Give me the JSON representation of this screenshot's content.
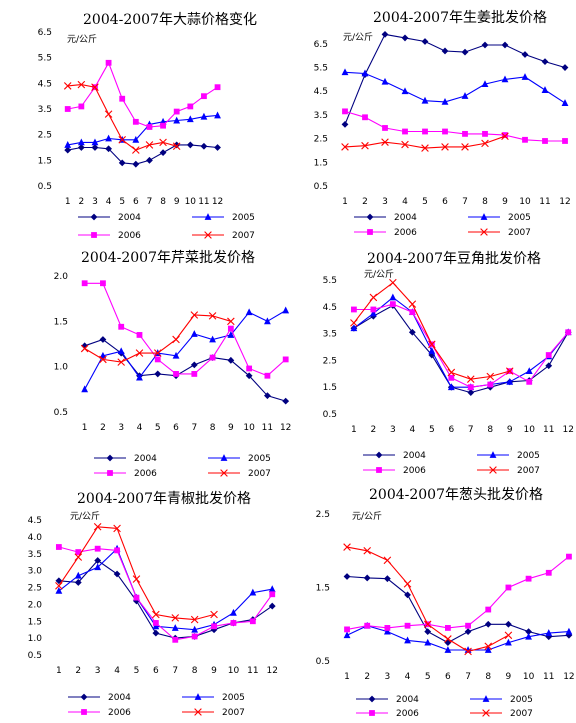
{
  "x_labels": [
    "1",
    "2",
    "3",
    "4",
    "5",
    "6",
    "7",
    "8",
    "9",
    "10",
    "11",
    "12"
  ],
  "series_styles": [
    {
      "name": "2004",
      "color": "#000080",
      "marker": "diamond"
    },
    {
      "name": "2005",
      "color": "#0000FF",
      "marker": "triangle"
    },
    {
      "name": "2006",
      "color": "#FF00FF",
      "marker": "square"
    },
    {
      "name": "2007",
      "color": "#FF0000",
      "marker": "x"
    }
  ],
  "chart_data": [
    {
      "type": "line",
      "title": "2004-2007年大蒜价格变化",
      "unit": "元/公斤",
      "ylim": [
        0.5,
        6.5
      ],
      "yticks": [
        "0.5",
        "1.5",
        "2.5",
        "3.5",
        "4.5",
        "5.5",
        "6.5"
      ],
      "ytick_values": [
        0.5,
        1.5,
        2.5,
        3.5,
        4.5,
        5.5,
        6.5
      ],
      "series": [
        {
          "name": "2004",
          "values": [
            1.9,
            2.0,
            2.0,
            1.95,
            1.4,
            1.35,
            1.5,
            1.8,
            2.1,
            2.1,
            2.05,
            2.0
          ]
        },
        {
          "name": "2005",
          "values": [
            2.1,
            2.2,
            2.2,
            2.35,
            2.3,
            2.3,
            2.9,
            3.0,
            3.05,
            3.1,
            3.2,
            3.25
          ]
        },
        {
          "name": "2006",
          "values": [
            3.5,
            3.6,
            4.35,
            5.3,
            3.9,
            3.0,
            2.8,
            2.85,
            3.4,
            3.6,
            4.0,
            4.35
          ]
        },
        {
          "name": "2007",
          "values": [
            4.4,
            4.45,
            4.35,
            3.3,
            2.3,
            1.9,
            2.1,
            2.2,
            2.05,
            null,
            null,
            null
          ]
        }
      ]
    },
    {
      "type": "line",
      "title": "2004-2007年生姜批发价格",
      "unit": "元/公斤",
      "ylim": [
        0.5,
        7.0
      ],
      "yticks": [
        "0.5",
        "1.5",
        "2.5",
        "3.5",
        "4.5",
        "5.5",
        "6.5"
      ],
      "ytick_values": [
        0.5,
        1.5,
        2.5,
        3.5,
        4.5,
        5.5,
        6.5
      ],
      "series": [
        {
          "name": "2004",
          "values": [
            3.1,
            5.2,
            6.9,
            6.75,
            6.6,
            6.2,
            6.15,
            6.45,
            6.45,
            6.05,
            5.75,
            5.5
          ]
        },
        {
          "name": "2005",
          "values": [
            5.3,
            5.25,
            4.9,
            4.5,
            4.1,
            4.05,
            4.3,
            4.8,
            5.0,
            5.1,
            4.55,
            4.0
          ]
        },
        {
          "name": "2006",
          "values": [
            3.65,
            3.4,
            2.95,
            2.8,
            2.8,
            2.8,
            2.7,
            2.7,
            2.65,
            2.45,
            2.4,
            2.4
          ]
        },
        {
          "name": "2007",
          "values": [
            2.15,
            2.2,
            2.35,
            2.25,
            2.1,
            2.15,
            2.15,
            2.3,
            2.6,
            null,
            null,
            null
          ]
        }
      ]
    },
    {
      "type": "line",
      "title": "2004-2007年芹菜批发价格",
      "unit": "",
      "ylim": [
        0.5,
        2.0
      ],
      "yticks": [
        "0.5",
        "1.0",
        "1.5",
        "2.0"
      ],
      "ytick_values": [
        0.5,
        1.0,
        1.5,
        2.0
      ],
      "series": [
        {
          "name": "2004",
          "values": [
            1.23,
            1.3,
            1.15,
            0.9,
            0.92,
            0.9,
            1.02,
            1.1,
            1.07,
            0.9,
            0.68,
            0.62
          ]
        },
        {
          "name": "2005",
          "values": [
            0.75,
            1.12,
            1.17,
            0.88,
            1.15,
            1.12,
            1.36,
            1.3,
            1.35,
            1.6,
            1.5,
            1.62
          ]
        },
        {
          "name": "2006",
          "values": [
            1.92,
            1.92,
            1.44,
            1.35,
            1.08,
            0.92,
            0.92,
            1.1,
            1.42,
            0.98,
            0.9,
            1.08
          ]
        },
        {
          "name": "2007",
          "values": [
            1.2,
            1.08,
            1.05,
            1.15,
            1.15,
            1.3,
            1.57,
            1.56,
            1.5,
            null,
            null,
            null
          ]
        }
      ]
    },
    {
      "type": "line",
      "title": "2004-2007年豆角批发价格",
      "unit": "元/公斤",
      "ylim": [
        0.5,
        5.5
      ],
      "yticks": [
        "0.5",
        "1.5",
        "2.5",
        "3.5",
        "4.5",
        "5.5"
      ],
      "ytick_values": [
        0.5,
        1.5,
        2.5,
        3.5,
        4.5,
        5.5
      ],
      "series": [
        {
          "name": "2004",
          "values": [
            3.7,
            4.15,
            4.55,
            3.55,
            2.7,
            1.5,
            1.3,
            1.5,
            1.7,
            1.75,
            2.3,
            3.55
          ]
        },
        {
          "name": "2005",
          "values": [
            3.7,
            4.25,
            4.85,
            4.3,
            2.85,
            1.5,
            1.5,
            1.6,
            1.7,
            2.1,
            2.65,
            3.55
          ]
        },
        {
          "name": "2006",
          "values": [
            4.4,
            4.4,
            4.6,
            4.3,
            3.1,
            1.85,
            1.5,
            1.6,
            2.1,
            1.7,
            2.7,
            3.55
          ]
        },
        {
          "name": "2007",
          "values": [
            3.9,
            4.85,
            5.4,
            4.6,
            3.1,
            2.05,
            1.8,
            1.9,
            2.1,
            null,
            null,
            null
          ]
        }
      ]
    },
    {
      "type": "line",
      "title": "2004-2007年青椒批发价格",
      "unit": "元/公斤",
      "ylim": [
        0.5,
        4.5
      ],
      "yticks": [
        "0.5",
        "1.0",
        "1.5",
        "2.0",
        "2.5",
        "3.0",
        "3.5",
        "4.0",
        "4.5"
      ],
      "ytick_values": [
        0.5,
        1.0,
        1.5,
        2.0,
        2.5,
        3.0,
        3.5,
        4.0,
        4.5
      ],
      "series": [
        {
          "name": "2004",
          "values": [
            2.7,
            2.65,
            3.3,
            2.9,
            2.1,
            1.15,
            1.0,
            1.05,
            1.25,
            1.45,
            1.55,
            1.95
          ]
        },
        {
          "name": "2005",
          "values": [
            2.4,
            2.85,
            3.1,
            3.65,
            2.2,
            1.35,
            1.3,
            1.25,
            1.4,
            1.75,
            2.35,
            2.45
          ]
        },
        {
          "name": "2006",
          "values": [
            3.7,
            3.55,
            3.65,
            3.6,
            2.2,
            1.45,
            0.95,
            1.05,
            1.35,
            1.45,
            1.5,
            2.3
          ]
        },
        {
          "name": "2007",
          "values": [
            2.55,
            3.4,
            4.3,
            4.25,
            2.75,
            1.7,
            1.6,
            1.55,
            1.7,
            null,
            null,
            null
          ]
        }
      ]
    },
    {
      "type": "line",
      "title": "2004-2007年葱头批发价格",
      "unit": "元/公斤",
      "ylim": [
        0.5,
        2.5
      ],
      "yticks": [
        "0.5",
        "1.5",
        "2.5"
      ],
      "ytick_values": [
        0.5,
        1.5,
        2.5
      ],
      "series": [
        {
          "name": "2004",
          "values": [
            1.65,
            1.63,
            1.62,
            1.4,
            0.9,
            0.75,
            0.9,
            1.0,
            1.0,
            0.9,
            0.83,
            0.85
          ]
        },
        {
          "name": "2005",
          "values": [
            0.85,
            0.98,
            0.9,
            0.78,
            0.75,
            0.65,
            0.65,
            0.65,
            0.75,
            0.83,
            0.88,
            0.9
          ]
        },
        {
          "name": "2006",
          "values": [
            0.93,
            0.98,
            0.95,
            0.98,
            1.0,
            0.95,
            0.98,
            1.2,
            1.5,
            1.62,
            1.7,
            1.92
          ]
        },
        {
          "name": "2007",
          "values": [
            2.05,
            2.0,
            1.87,
            1.55,
            1.0,
            0.8,
            0.63,
            0.7,
            0.85,
            null,
            null,
            null
          ]
        }
      ]
    }
  ]
}
